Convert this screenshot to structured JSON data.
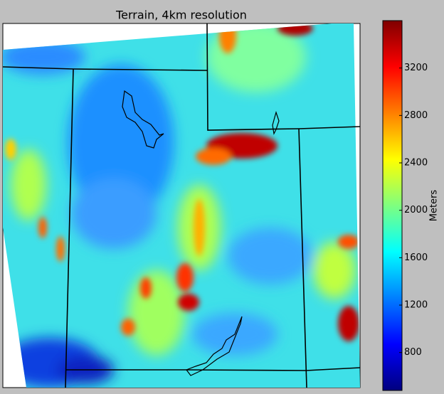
{
  "chart_data": {
    "type": "map",
    "title": "Terrain, 4km resolution",
    "colorbar": {
      "label": "Meters",
      "colormap": "jet",
      "lim": [
        480,
        3600
      ],
      "ticks": [
        800,
        1200,
        1600,
        2000,
        2400,
        2800,
        3200
      ]
    }
  }
}
